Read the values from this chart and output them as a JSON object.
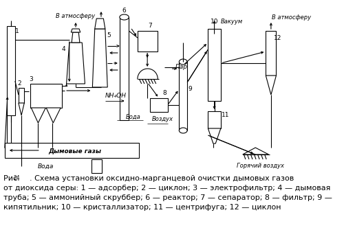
{
  "fig_width": 5.16,
  "fig_height": 3.67,
  "dpi": 100,
  "bg_color": "#ffffff",
  "lc": "#000000",
  "lw": 0.8,
  "label_v_atm1": "В атмосферу",
  "label_v_atm2": "В атмосферу",
  "label_vakuum": "Вакуум",
  "label_par": "Пар",
  "label_nh4oh": "NH₄OH",
  "label_vozduh": "Воздух",
  "label_voda1": "Вода",
  "label_voda2": "Вода",
  "label_dimovye_gazy": "Дымовые газы",
  "label_goryachiy_vozduh": "Горячий воздух",
  "cap1": "Рис. ",
  "cap1b": "24",
  "cap1c": "    . Схема установки оксидно-марганцевой очистки дымовых газов",
  "cap2": "от диоксида серы: 1 — адсорбер; 2 — циклон; 3 — электрофильтр; 4 — дымовая",
  "cap3": "труба; 5 — аммонийный скруббер; 6 — реактор; 7 — сепаратор; 8 — фильтр; 9 —",
  "cap4": "кипятильник; 10 — кристаллизатор; 11 — центрифуга; 12 — циклон"
}
